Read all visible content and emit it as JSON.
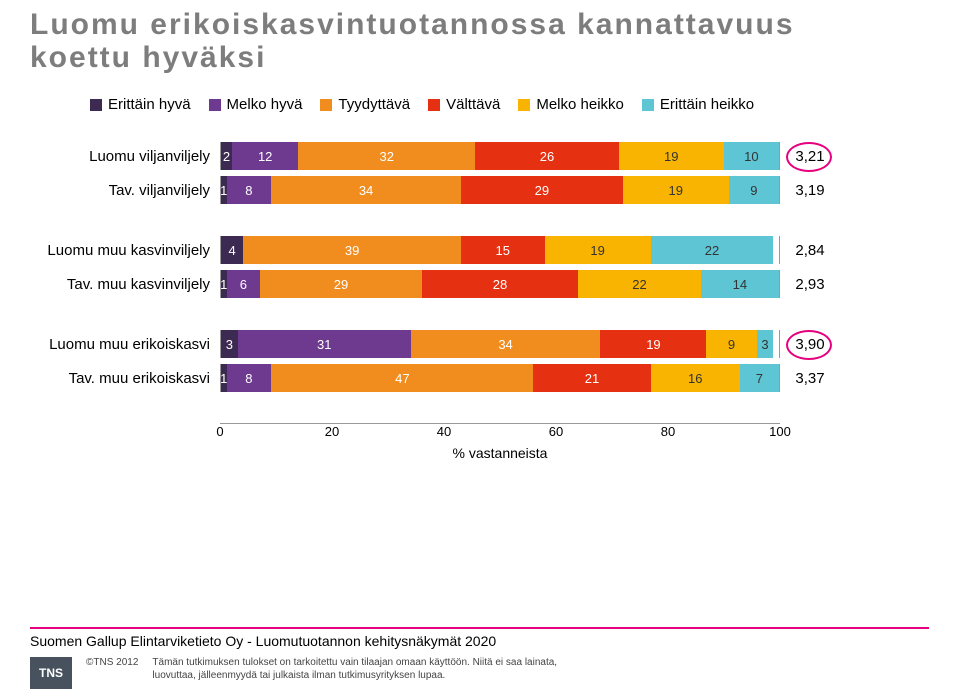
{
  "title_l1": "Luomu erikoiskasvintuotannossa kannattavuus",
  "title_l2": "koettu hyväksi",
  "legend": [
    {
      "label": "Erittäin hyvä",
      "color": "#3d2a52"
    },
    {
      "label": "Melko hyvä",
      "color": "#6d3a8f"
    },
    {
      "label": "Tyydyttävä",
      "color": "#f18c1f"
    },
    {
      "label": "Välttävä",
      "color": "#e53012"
    },
    {
      "label": "Melko heikko",
      "color": "#f8b400"
    },
    {
      "label": "Erittäin heikko",
      "color": "#5ec5d4"
    }
  ],
  "groups": [
    {
      "rows": [
        {
          "label": "Luomu viljanviljely",
          "segs": [
            2,
            12,
            32,
            26,
            19,
            10
          ],
          "total": "3,21",
          "circle": true
        },
        {
          "label": "Tav. viljanviljely",
          "segs": [
            1,
            8,
            34,
            29,
            19,
            9
          ],
          "total": "3,19"
        }
      ]
    },
    {
      "rows": [
        {
          "label": "Luomu muu kasvinviljely",
          "segs": [
            4,
            0,
            39,
            15,
            19,
            22
          ],
          "show": [
            4,
            null,
            39,
            15,
            19,
            22
          ],
          "total": "2,84"
        },
        {
          "label": "Tav. muu kasvinviljely",
          "segs": [
            1,
            6,
            29,
            28,
            22,
            14
          ],
          "total": "2,93"
        }
      ]
    },
    {
      "rows": [
        {
          "label": "Luomu muu erikoiskasvi",
          "segs": [
            3,
            31,
            34,
            19,
            9,
            3
          ],
          "total": "3,90",
          "circle": true
        },
        {
          "label": "Tav. muu erikoiskasvi",
          "segs": [
            1,
            8,
            47,
            21,
            16,
            7
          ],
          "total": "3,37"
        }
      ]
    }
  ],
  "colors": [
    "#3d2a52",
    "#6d3a8f",
    "#f18c1f",
    "#e53012",
    "#f8b400",
    "#5ec5d4"
  ],
  "text_dark_on": [
    false,
    false,
    false,
    false,
    true,
    true
  ],
  "axis": {
    "min": 0,
    "max": 100,
    "step": 20,
    "label": "% vastanneista"
  },
  "source": "Suomen Gallup Elintarviketieto Oy - Luomutuotannon kehitysnäkymät 2020",
  "logo": "TNS",
  "copyright": "©TNS 2012",
  "disclaimer_l1": "Tämän tutkimuksen tulokset on tarkoitettu vain tilaajan omaan käyttöön. Niitä ei saa lainata,",
  "disclaimer_l2": "luovuttaa, jälleenmyydä tai julkaista ilman tutkimusyrityksen lupaa."
}
